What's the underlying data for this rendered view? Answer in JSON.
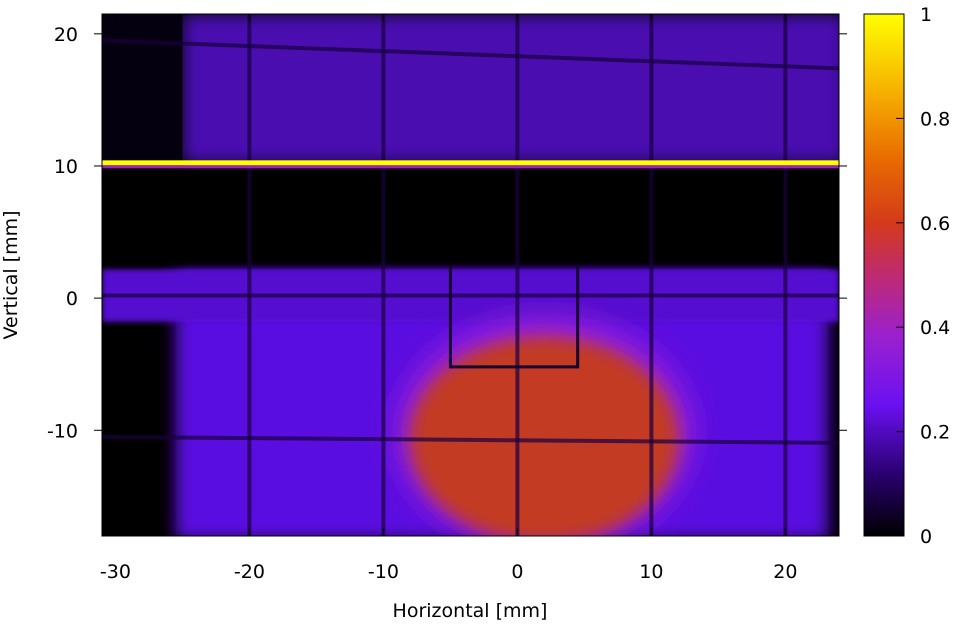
{
  "chart_data": {
    "type": "heatmap",
    "title": "",
    "xlabel": "Horizontal [mm]",
    "ylabel": "Vertical [mm]",
    "xlim": [
      -31,
      24
    ],
    "ylim": [
      -18,
      21.5
    ],
    "xticks": [
      -30,
      -20,
      -10,
      0,
      10,
      20
    ],
    "yticks": [
      -10,
      0,
      10,
      20
    ],
    "colorbar": {
      "range": [
        0,
        1
      ],
      "ticks": [
        0,
        0.2,
        0.4,
        0.6,
        0.8,
        1
      ],
      "colormap": [
        "#000000",
        "#2a0060",
        "#5a00d8",
        "#7a18f0",
        "#a020c0",
        "#c02a60",
        "#d83810",
        "#f08800",
        "#ffd000",
        "#ffff00"
      ]
    },
    "features": {
      "dark_band_y": [
        2.5,
        9.8
      ],
      "bright_stripe_y": 10.2,
      "grid_lines_x": [
        -20,
        -10,
        0,
        10,
        20
      ],
      "grid_lines_y": [
        19.5,
        0.2,
        -10.5
      ],
      "beam_spot": {
        "x_range": [
          -8,
          12
        ],
        "y_range": [
          -18,
          -2.5
        ],
        "value": 0.5
      },
      "upper_region_value": 0.2,
      "lower_region_value": 0.22
    }
  }
}
